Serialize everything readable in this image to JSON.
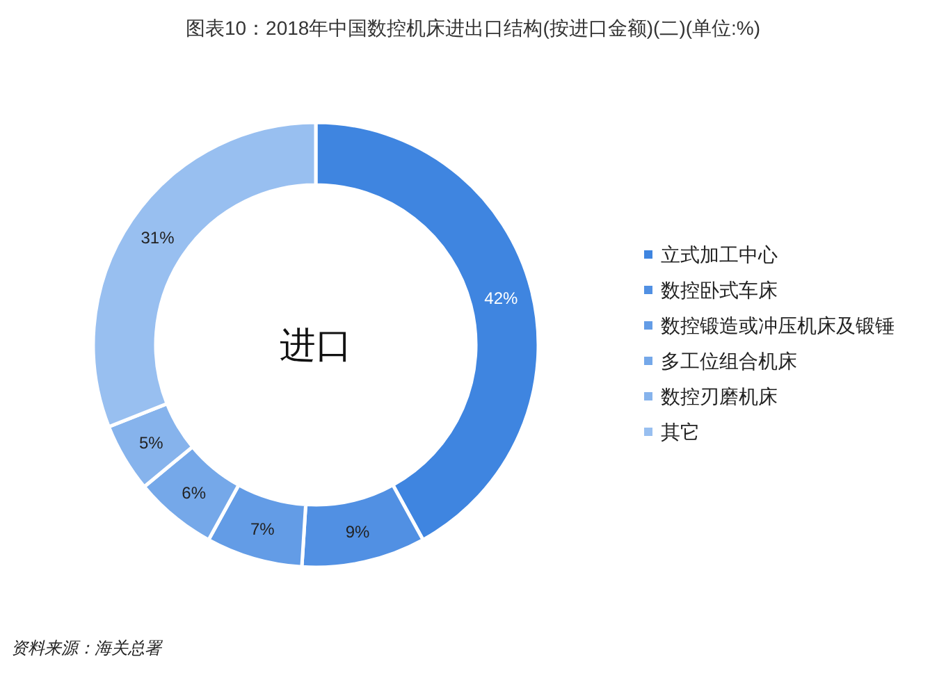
{
  "chart_data": {
    "type": "donut",
    "title": "图表10：2018年中国数控机床进出口结构(按进口金额)(二)(单位:%)",
    "categories": [
      "立式加工中心",
      "数控卧式车床",
      "数控锻造或冲压机床及锻锤",
      "多工位组合机床",
      "数控刃磨机床",
      "其它"
    ],
    "values": [
      42,
      9,
      7,
      6,
      5,
      31
    ],
    "value_labels": [
      "42%",
      "9%",
      "7%",
      "6%",
      "5%",
      "31%"
    ],
    "colors": [
      "#3f85e0",
      "#5190e3",
      "#639ce6",
      "#75a8e9",
      "#86b3ec",
      "#98bff0"
    ],
    "legend": "right",
    "annotations": [
      "进口",
      "资料来源：海关总署"
    ]
  }
}
